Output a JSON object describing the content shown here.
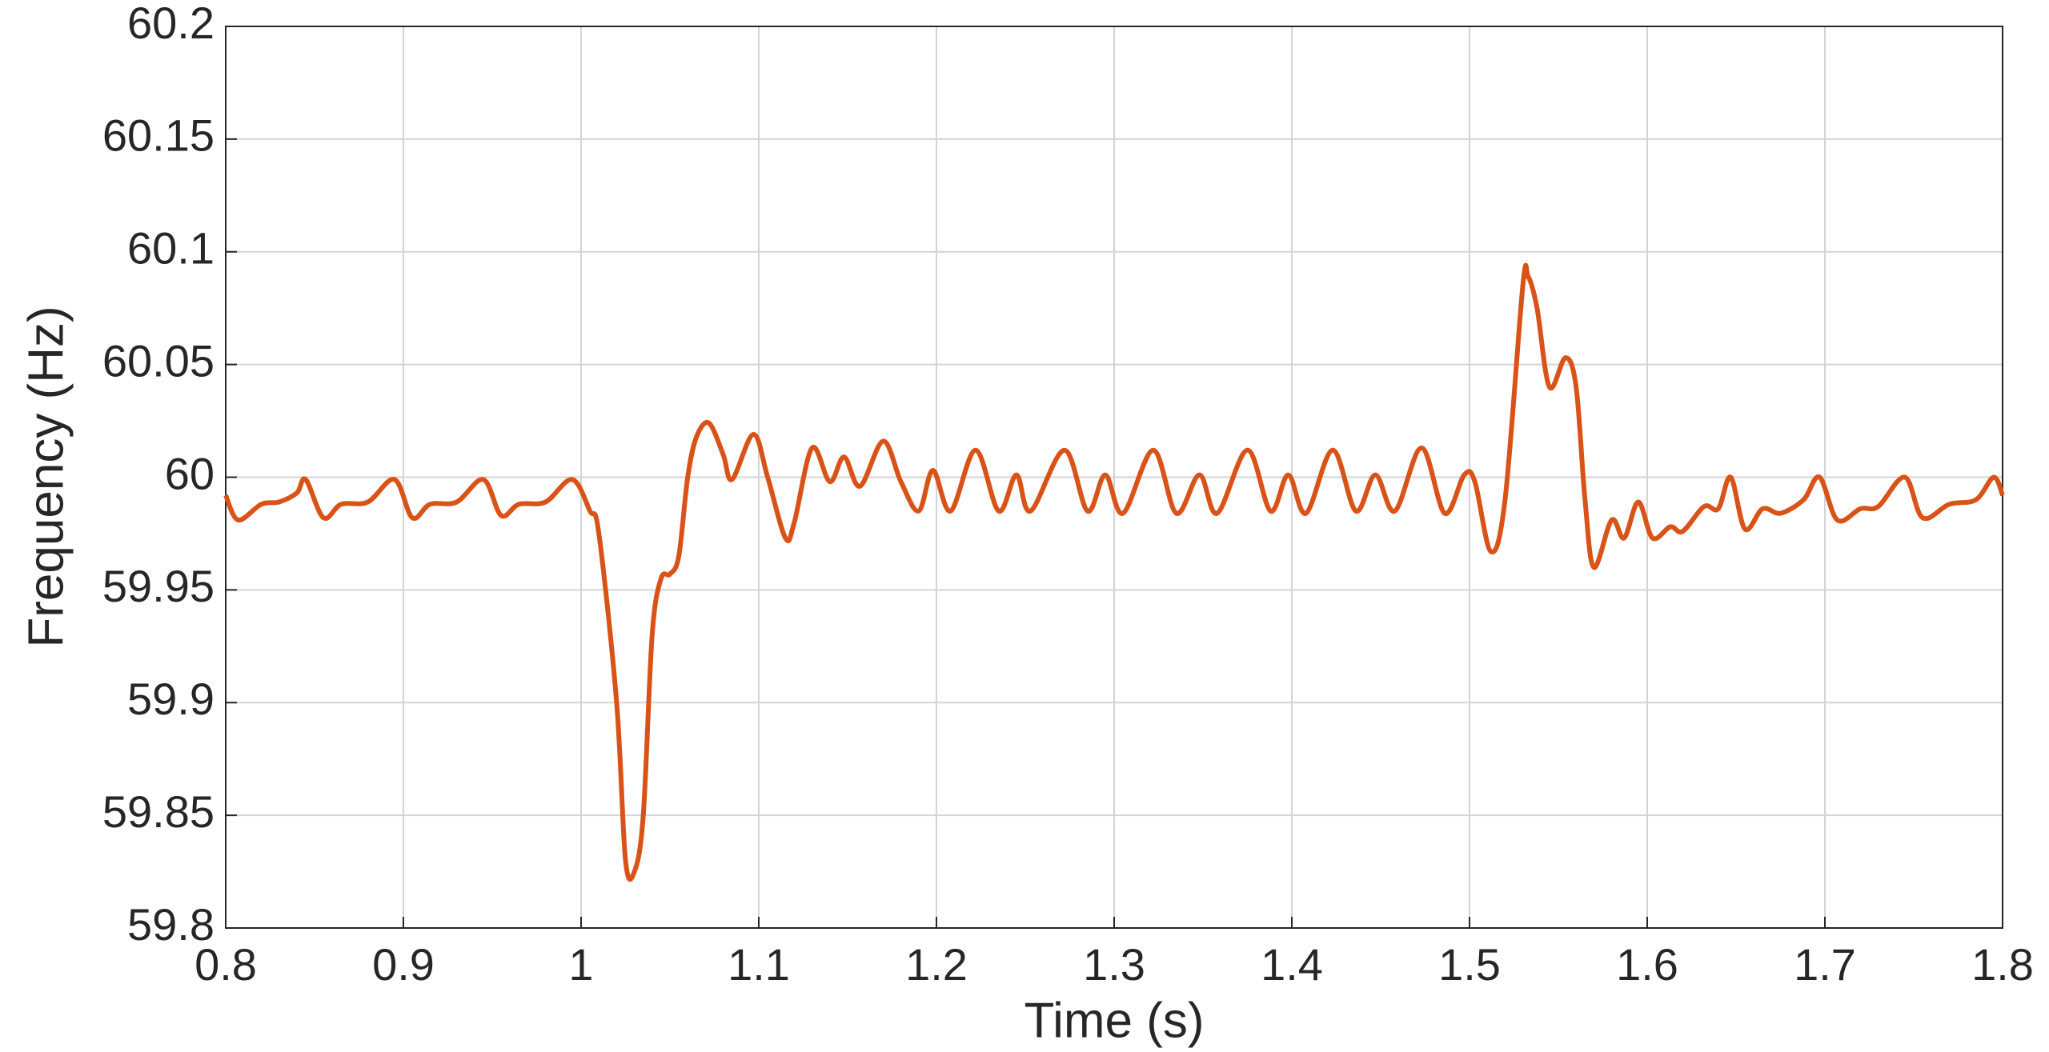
{
  "chart_data": {
    "type": "line",
    "x_label": "Time (s)",
    "y_label": "Frequency (Hz)",
    "xlim": [
      0.8,
      1.8
    ],
    "xticks": [
      0.8,
      0.9,
      1,
      1.1,
      1.2,
      1.3,
      1.4,
      1.5,
      1.6,
      1.7,
      1.8
    ],
    "ylim": [
      59.8,
      60.2
    ],
    "yticks": [
      59.8,
      59.85,
      59.9,
      59.95,
      60,
      60.05,
      60.1,
      60.15,
      60.2
    ],
    "grid": true,
    "series": [
      {
        "color": "#d95319",
        "x": [
          0.8,
          0.807,
          0.82,
          0.83,
          0.84,
          0.845,
          0.855,
          0.865,
          0.88,
          0.895,
          0.905,
          0.915,
          0.93,
          0.945,
          0.955,
          0.965,
          0.98,
          0.995,
          1.005,
          1.01,
          1.02,
          1.025,
          1.03,
          1.035,
          1.04,
          1.045,
          1.05,
          1.055,
          1.06,
          1.065,
          1.072,
          1.08,
          1.085,
          1.097,
          1.105,
          1.115,
          1.12,
          1.13,
          1.14,
          1.148,
          1.157,
          1.17,
          1.18,
          1.19,
          1.198,
          1.208,
          1.222,
          1.235,
          1.245,
          1.253,
          1.272,
          1.285,
          1.295,
          1.305,
          1.322,
          1.335,
          1.348,
          1.358,
          1.375,
          1.388,
          1.398,
          1.408,
          1.423,
          1.436,
          1.447,
          1.458,
          1.473,
          1.486,
          1.497,
          1.503,
          1.512,
          1.52,
          1.53,
          1.533,
          1.538,
          1.545,
          1.554,
          1.56,
          1.565,
          1.57,
          1.58,
          1.587,
          1.595,
          1.603,
          1.613,
          1.62,
          1.632,
          1.64,
          1.647,
          1.655,
          1.665,
          1.675,
          1.688,
          1.697,
          1.707,
          1.72,
          1.73,
          1.745,
          1.755,
          1.77,
          1.785,
          1.795,
          1.8
        ],
        "values": [
          59.992,
          59.981,
          59.988,
          59.989,
          59.993,
          59.999,
          59.982,
          59.988,
          59.989,
          59.999,
          59.982,
          59.988,
          59.989,
          59.999,
          59.983,
          59.988,
          59.989,
          59.999,
          59.985,
          59.975,
          59.9,
          59.83,
          59.825,
          59.85,
          59.93,
          59.955,
          59.957,
          59.965,
          60.0,
          60.018,
          60.024,
          60.01,
          59.999,
          60.019,
          60.0,
          59.973,
          59.98,
          60.013,
          59.998,
          60.009,
          59.996,
          60.016,
          59.998,
          59.985,
          60.003,
          59.985,
          60.012,
          59.985,
          60.001,
          59.985,
          60.012,
          59.985,
          60.001,
          59.984,
          60.012,
          59.984,
          60.001,
          59.984,
          60.012,
          59.985,
          60.001,
          59.984,
          60.012,
          59.985,
          60.001,
          59.985,
          60.013,
          59.984,
          60.001,
          59.998,
          59.967,
          59.99,
          60.085,
          60.089,
          60.075,
          60.04,
          60.053,
          60.04,
          59.99,
          59.96,
          59.981,
          59.973,
          59.989,
          59.973,
          59.978,
          59.976,
          59.987,
          59.986,
          60.0,
          59.977,
          59.986,
          59.984,
          59.99,
          60.0,
          59.981,
          59.986,
          59.987,
          60.0,
          59.982,
          59.988,
          59.99,
          60.0,
          59.992
        ]
      }
    ]
  }
}
